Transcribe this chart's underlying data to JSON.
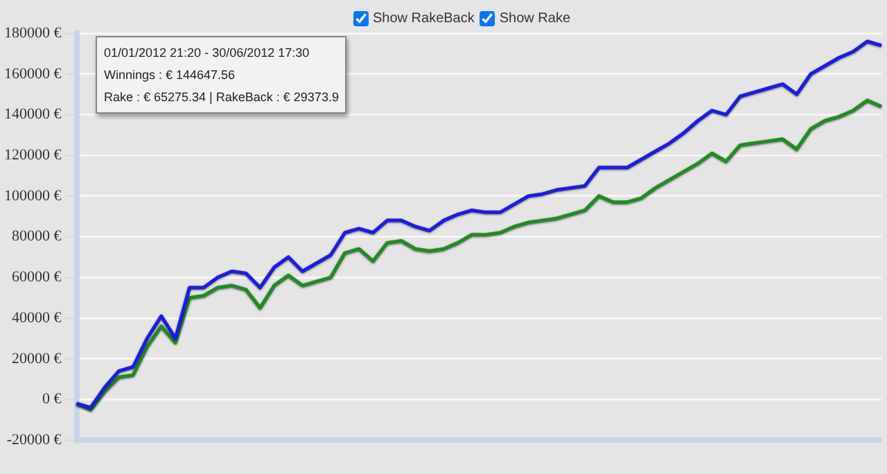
{
  "chart_data": {
    "type": "line",
    "categories": [
      null,
      null,
      null,
      null,
      null,
      null,
      null,
      null,
      null,
      null,
      null,
      null,
      null,
      null,
      null,
      null,
      null,
      null,
      null,
      null,
      null,
      null,
      null,
      null,
      null,
      null,
      null,
      null,
      null,
      null,
      null,
      null,
      null,
      null,
      null,
      null,
      null,
      null,
      null,
      null,
      null,
      null,
      null,
      null,
      null,
      null,
      null,
      null,
      null,
      null,
      null,
      null,
      null,
      null,
      null,
      null,
      null,
      null
    ],
    "series": [
      {
        "color": "#1c1ce0",
        "values": [
          -2000,
          -4000,
          6000,
          14000,
          16000,
          30000,
          41000,
          30000,
          55000,
          55000,
          60000,
          63000,
          62000,
          55000,
          65000,
          70000,
          63000,
          67000,
          71000,
          82000,
          84000,
          82000,
          88000,
          88000,
          85000,
          83000,
          88000,
          91000,
          93000,
          92000,
          92000,
          96000,
          100000,
          101000,
          103000,
          104000,
          105000,
          114000,
          114000,
          114000,
          118000,
          122000,
          126000,
          131000,
          137000,
          142000,
          140000,
          149000,
          151000,
          153000,
          155000,
          150000,
          160000,
          164000,
          168000,
          171000,
          176000,
          174000
        ]
      },
      {
        "color": "#228b22",
        "values": [
          -2000,
          -5000,
          4000,
          11000,
          12000,
          26000,
          36000,
          28000,
          50000,
          51000,
          55000,
          56000,
          54000,
          45000,
          56000,
          61000,
          56000,
          58000,
          60000,
          72000,
          74000,
          68000,
          77000,
          78000,
          74000,
          73000,
          74000,
          77000,
          81000,
          81000,
          82000,
          85000,
          87000,
          88000,
          89000,
          91000,
          93000,
          100000,
          97000,
          97000,
          99000,
          104000,
          108000,
          112000,
          116000,
          121000,
          117000,
          125000,
          126000,
          127000,
          128000,
          123000,
          133000,
          137000,
          139000,
          142000,
          147000,
          144000
        ]
      }
    ],
    "ylim": [
      -20000,
      180000
    ],
    "yticks": [
      {
        "value": -20000,
        "label": "-20000 €"
      },
      {
        "value": 0,
        "label": "0 €"
      },
      {
        "value": 20000,
        "label": "20000 €"
      },
      {
        "value": 40000,
        "label": "40000 €"
      },
      {
        "value": 60000,
        "label": "60000 €"
      },
      {
        "value": 80000,
        "label": "80000 €"
      },
      {
        "value": 100000,
        "label": "100000 €"
      },
      {
        "value": 120000,
        "label": "120000 €"
      },
      {
        "value": 140000,
        "label": "140000 €"
      },
      {
        "value": 160000,
        "label": "160000 €"
      },
      {
        "value": 180000,
        "label": "180000 €"
      }
    ],
    "grid": "y",
    "legend": false,
    "marker": "none",
    "line_style": "solid",
    "annotations": [
      "Show RakeBack",
      "Show Rake",
      "01/01/2012 21:20 - 30/06/2012 17:30",
      "Winnings : € 144647.56",
      "Rake : € 65275.34 | RakeBack : € 29373.9"
    ]
  }
}
